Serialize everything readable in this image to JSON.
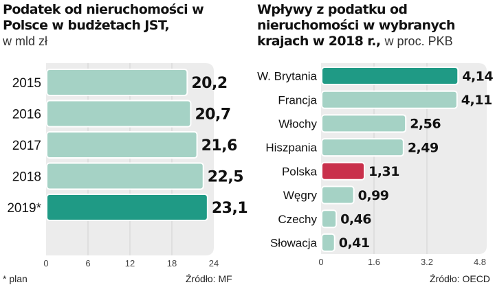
{
  "chart_data": [
    {
      "type": "bar",
      "orientation": "horizontal",
      "title": "Podatek od nieruchomości w Polsce w budżetach JST,",
      "subtitle": "w mld zł",
      "categories": [
        "2015",
        "2016",
        "2017",
        "2018",
        "2019*"
      ],
      "values": [
        20.2,
        20.7,
        21.6,
        22.5,
        23.1
      ],
      "value_labels": [
        "20,2",
        "20,7",
        "21,6",
        "22,5",
        "23,1"
      ],
      "highlight": [
        false,
        false,
        false,
        false,
        true
      ],
      "xlim": [
        0,
        24
      ],
      "xticks": [
        "0",
        "6",
        "12",
        "18",
        "24"
      ],
      "xtick_values": [
        0,
        6,
        12,
        18,
        24
      ],
      "grid": true,
      "footnote": "* plan",
      "source": "Źródło: MF"
    },
    {
      "type": "bar",
      "orientation": "horizontal",
      "title": "Wpływy z podatku od nieruchomości w wybranych krajach w 2018 r.,",
      "subtitle": "w proc. PKB",
      "categories": [
        "W. Brytania",
        "Francja",
        "Włochy",
        "Hiszpania",
        "Polska",
        "Węgry",
        "Czechy",
        "Słowacja"
      ],
      "values": [
        4.14,
        4.11,
        2.56,
        2.49,
        1.31,
        0.99,
        0.46,
        0.41
      ],
      "value_labels": [
        "4,14",
        "4,11",
        "2,56",
        "2,49",
        "1,31",
        "0,99",
        "0,46",
        "0,41"
      ],
      "bar_colors": [
        "#1f9a85",
        "#a5d2c5",
        "#a5d2c5",
        "#a5d2c5",
        "#c9304b",
        "#a5d2c5",
        "#a5d2c5",
        "#a5d2c5"
      ],
      "xlim": [
        0,
        4.8
      ],
      "xticks": [
        "0",
        "1.6",
        "3.2",
        "4.8"
      ],
      "xtick_values": [
        0,
        1.6,
        3.2,
        4.8
      ],
      "grid": true,
      "source": "Źródło: OECD"
    }
  ],
  "colors": {
    "light": "#a5d2c5",
    "dark": "#1f9a85",
    "red": "#c9304b",
    "panel": "#ececec",
    "grid": "#d2d2d2"
  }
}
